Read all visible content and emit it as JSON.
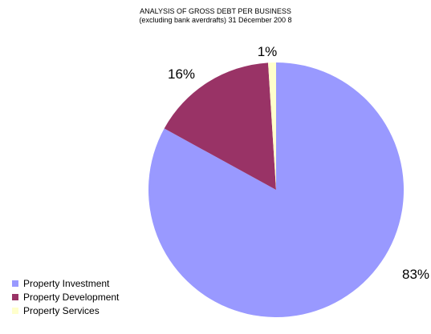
{
  "chart_data": {
    "type": "pie",
    "title_lines": [
      "ANALYSIS OF GROSS DEBT PER BUSINESS",
      "(excluding bank averdrafts) 31 Décember 200 8"
    ],
    "categories": [
      "Property Investment",
      "Property Development",
      "Property Services"
    ],
    "values": [
      83,
      16,
      1
    ],
    "value_labels": [
      "83%",
      "16%",
      "1%"
    ],
    "colors": [
      "#9999ff",
      "#993366",
      "#ffffcc"
    ],
    "legend_position": "bottom-left"
  }
}
